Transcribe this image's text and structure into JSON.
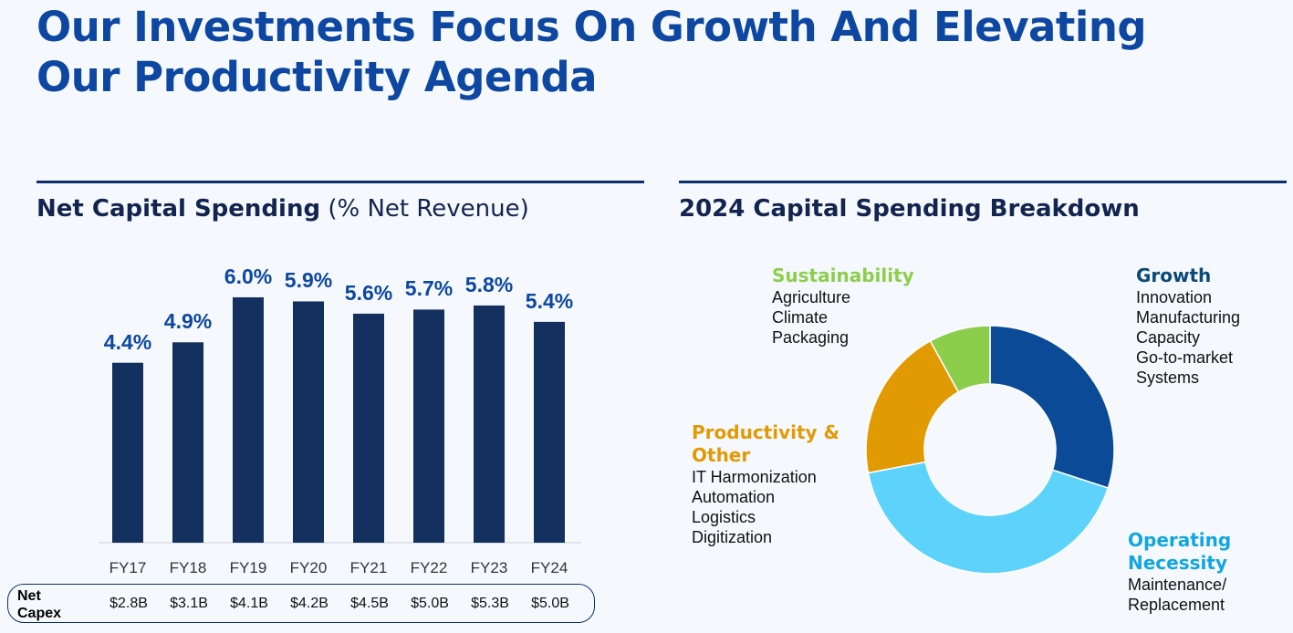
{
  "page": {
    "title_lines": [
      "Our Investments Focus On Growth And Elevating",
      "Our Productivity Agenda"
    ]
  },
  "left_panel": {
    "title_bold": "Net Capital Spending",
    "title_light": " (% Net Revenue)",
    "net_capex_label_lines": [
      "Net",
      "Capex"
    ],
    "net_capex_values": [
      "$2.8B",
      "$3.1B",
      "$4.1B",
      "$4.2B",
      "$4.5B",
      "$5.0B",
      "$5.3B",
      "$5.0B"
    ]
  },
  "right_panel": {
    "title": "2024 Capital Spending Breakdown"
  },
  "chart_data": [
    {
      "type": "bar",
      "title": "Net Capital Spending (% Net Revenue)",
      "categories": [
        "FY17",
        "FY18",
        "FY19",
        "FY20",
        "FY21",
        "FY22",
        "FY23",
        "FY24"
      ],
      "values": [
        4.4,
        4.9,
        6.0,
        5.9,
        5.6,
        5.7,
        5.8,
        5.4
      ],
      "value_labels": [
        "4.4%",
        "4.9%",
        "6.0%",
        "5.9%",
        "5.6%",
        "5.7%",
        "5.8%",
        "5.4%"
      ],
      "ylim": [
        0,
        6.2
      ],
      "grid": false,
      "bar_color": "#13305f",
      "label_color": "#0d47a1"
    },
    {
      "type": "pie",
      "title": "2024 Capital Spending Breakdown",
      "donut": true,
      "slices": [
        {
          "name_lines": [
            "Growth"
          ],
          "share": 0.3,
          "color": "#0b4a97",
          "label_color": "#0b4a77",
          "items": [
            "Innovation",
            "Manufacturing",
            "Capacity",
            "Go-to-market",
            "Systems"
          ]
        },
        {
          "name_lines": [
            "Operating",
            "Necessity"
          ],
          "share": 0.42,
          "color": "#5dd3fb",
          "label_color": "#12a6e0",
          "items": [
            "Maintenance/",
            "Replacement"
          ]
        },
        {
          "name_lines": [
            "Productivity &",
            "Other"
          ],
          "share": 0.2,
          "color": "#e29a03",
          "label_color": "#e29a03",
          "items": [
            "IT Harmonization",
            "Automation",
            "Logistics",
            "Digitization"
          ]
        },
        {
          "name_lines": [
            "Sustainability"
          ],
          "share": 0.08,
          "color": "#8cce4c",
          "label_color": "#8cce4c",
          "items": [
            "Agriculture",
            "Climate",
            "Packaging"
          ]
        }
      ]
    }
  ]
}
